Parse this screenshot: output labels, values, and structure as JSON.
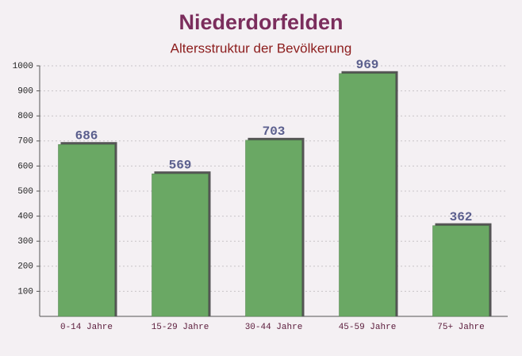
{
  "chart_data": {
    "type": "bar",
    "title": "Niederdorfelden",
    "subtitle": "Altersstruktur der Bevölkerung",
    "categories": [
      "0-14 Jahre",
      "15-29 Jahre",
      "30-44 Jahre",
      "45-59 Jahre",
      "75+ Jahre"
    ],
    "values": [
      686,
      569,
      703,
      969,
      362
    ],
    "color": "#6aa864",
    "ylim": [
      0,
      1000
    ],
    "yticks": [
      100,
      200,
      300,
      400,
      500,
      600,
      700,
      800,
      900,
      1000
    ],
    "grid": true
  }
}
